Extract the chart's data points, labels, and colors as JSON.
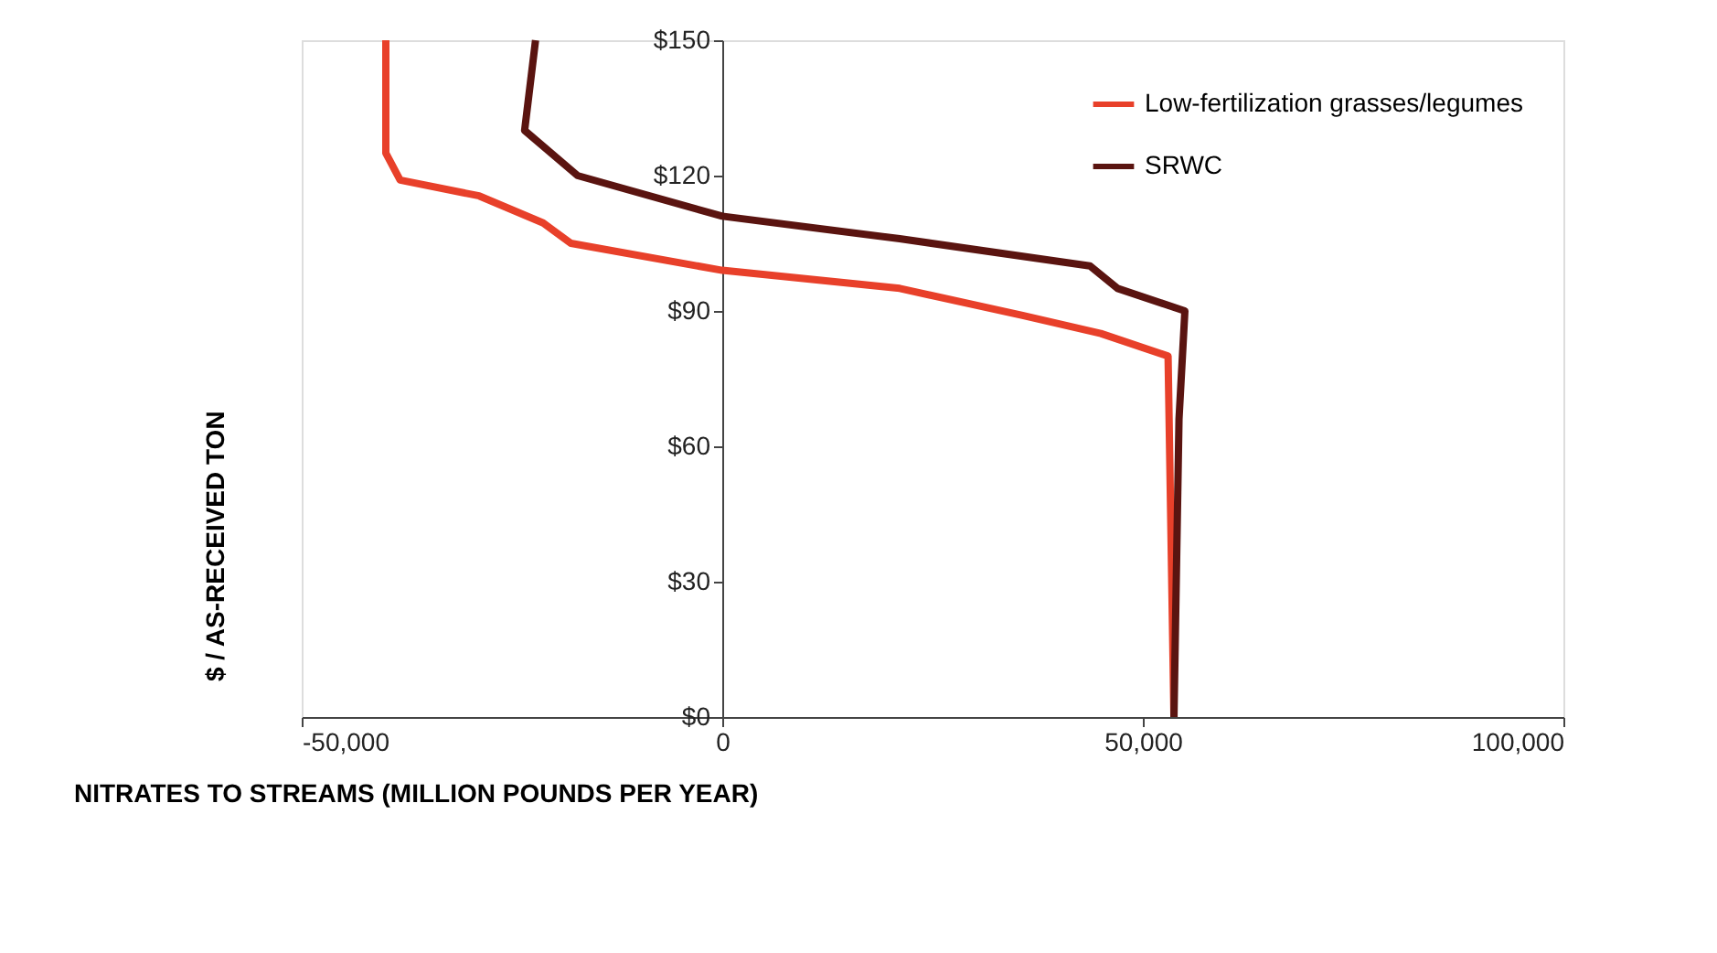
{
  "chart_data": {
    "type": "line",
    "xlabel": "NITRATES TO STREAMS (MILLION POUNDS PER YEAR)",
    "ylabel": "$ / AS-RECEIVED TON",
    "xlim": [
      -50000,
      100000
    ],
    "xticks": [
      {
        "value": -50000,
        "label": "-50,000"
      },
      {
        "value": 0,
        "label": "0"
      },
      {
        "value": 50000,
        "label": "50,000"
      },
      {
        "value": 100000,
        "label": "100,000"
      }
    ],
    "ylim": [
      0,
      150
    ],
    "yticks": [
      {
        "value": 0,
        "label": "$0"
      },
      {
        "value": 30,
        "label": "$30"
      },
      {
        "value": 60,
        "label": "$60"
      },
      {
        "value": 90,
        "label": "$90"
      },
      {
        "value": 120,
        "label": "$120"
      },
      {
        "value": 150,
        "label": "$150"
      }
    ],
    "grid": false,
    "legend": "top right",
    "marker": "none",
    "line_style": "solid",
    "series": [
      {
        "name": "Low-fertilization grasses/legumes",
        "color": "#e8402a",
        "x": [
          -40000,
          -40000,
          -38300,
          -28900,
          -21300,
          -18000,
          0,
          21100,
          35700,
          45000,
          53000,
          53700
        ],
        "values": [
          150,
          125,
          119,
          115.5,
          109.5,
          105,
          99,
          95,
          89,
          85,
          80,
          0
        ]
      },
      {
        "name": "SRWC",
        "color": "#5a1410",
        "x": [
          -22200,
          -23500,
          -17200,
          0,
          21100,
          43700,
          47000,
          55000,
          54300,
          53700
        ],
        "values": [
          150,
          130,
          120,
          111,
          106,
          100,
          95,
          90,
          66,
          0
        ]
      }
    ]
  }
}
